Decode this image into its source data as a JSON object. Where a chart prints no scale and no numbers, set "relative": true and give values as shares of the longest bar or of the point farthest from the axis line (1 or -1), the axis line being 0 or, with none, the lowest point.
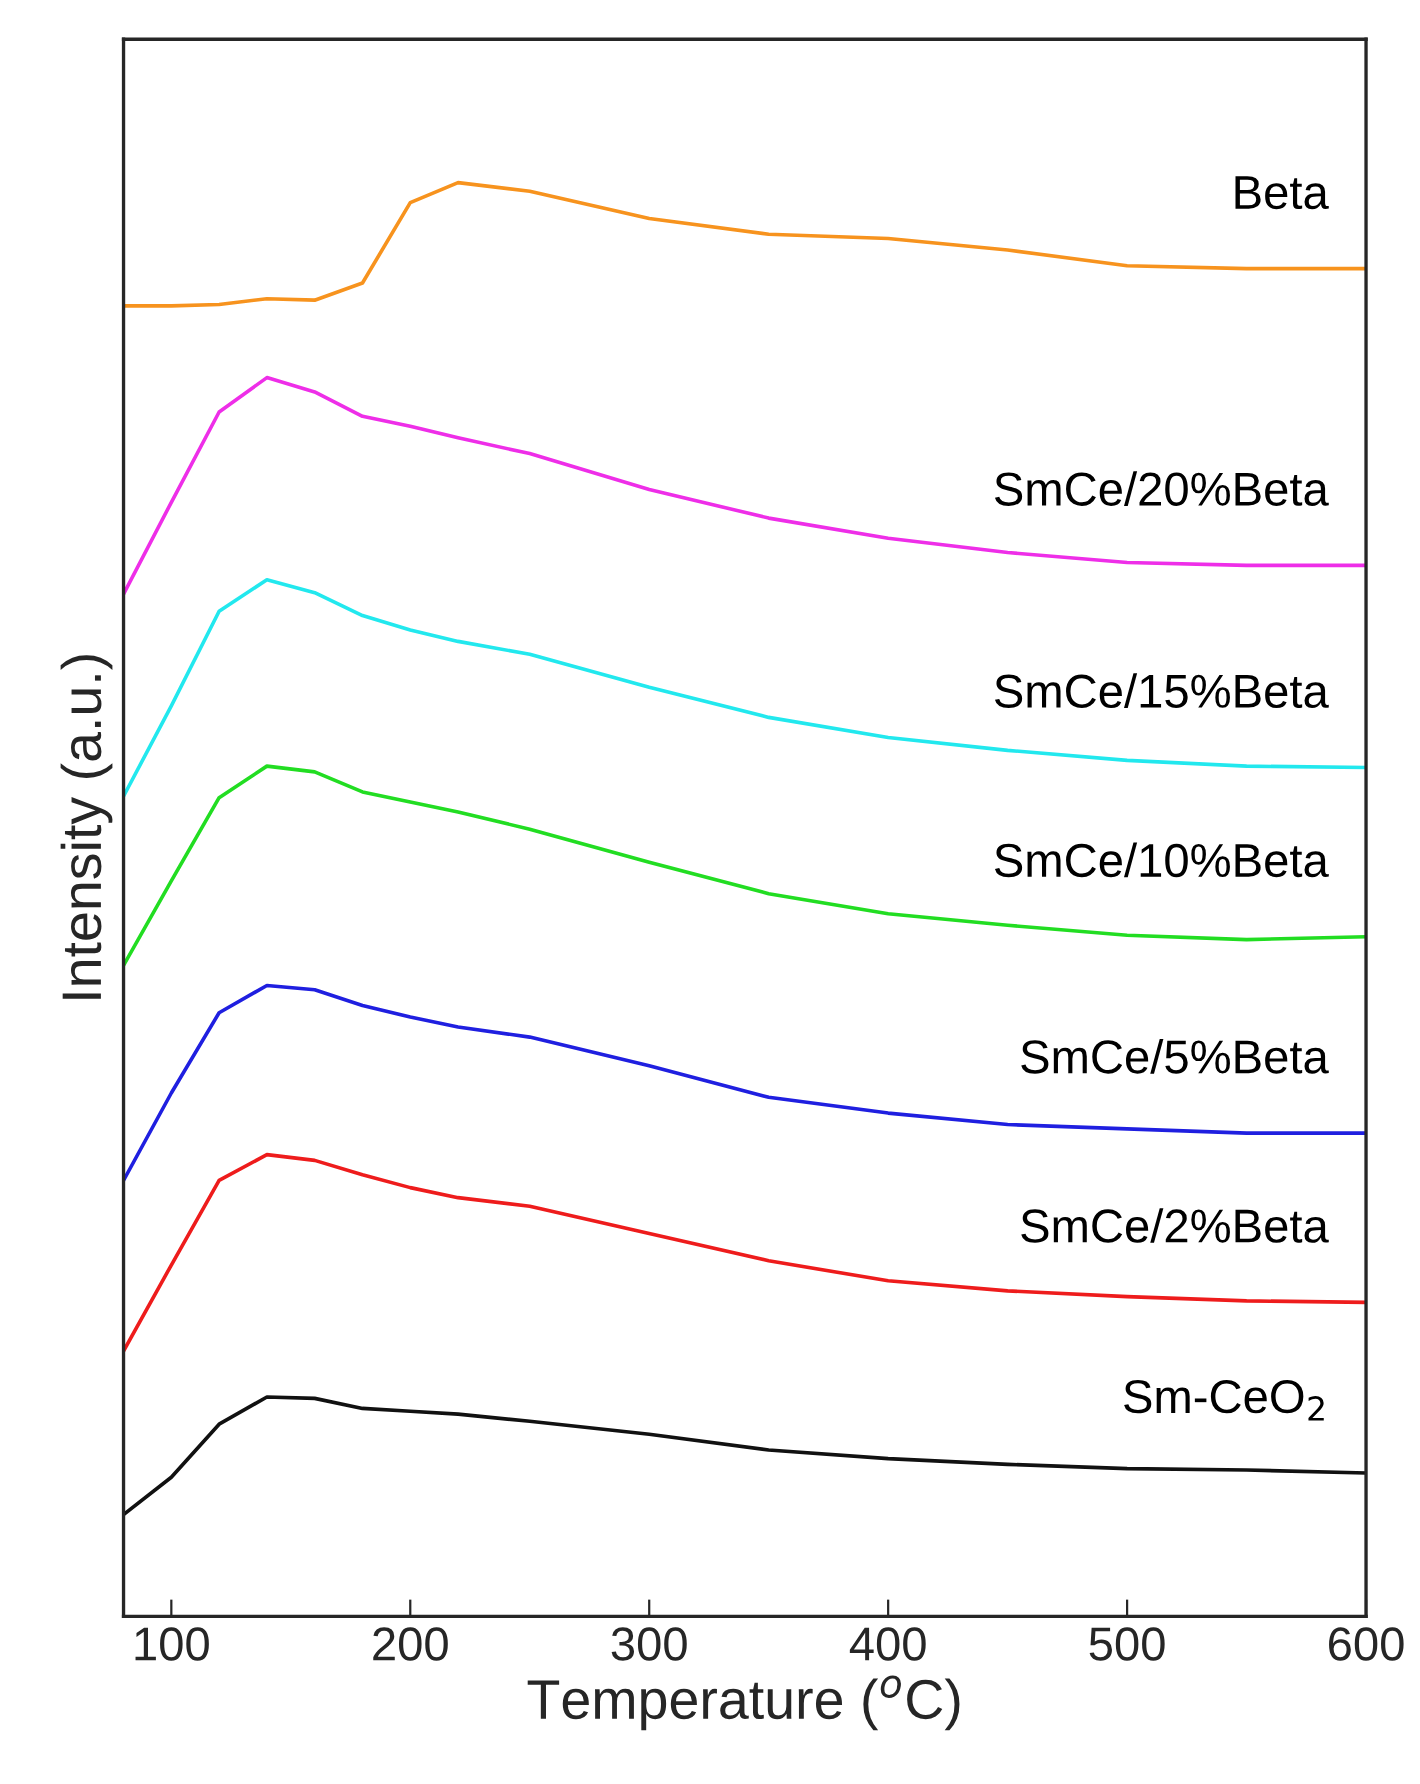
{
  "chart_data": {
    "type": "line",
    "relative": true,
    "xlabel": "Temperature ($^{o}$C)",
    "ylabel": "Intensity (a.u.)",
    "x": [
      80,
      100,
      120,
      140,
      160,
      180,
      200,
      220,
      250,
      300,
      350,
      400,
      450,
      500,
      550,
      600
    ],
    "xlim": [
      80,
      600
    ],
    "xticks": [
      100,
      200,
      300,
      400,
      500,
      600
    ],
    "grid": false,
    "legend": false,
    "tick_labels": "x",
    "series": [
      {
        "name": "Beta",
        "color": "#f7931e",
        "values": [
          0.914,
          0.914,
          0.915,
          0.919,
          0.918,
          0.93,
          0.986,
          1.0,
          0.994,
          0.975,
          0.964,
          0.961,
          0.953,
          0.942,
          0.94,
          0.94
        ]
      },
      {
        "name": "SmCe/20%Beta",
        "color": "#ee2ee8",
        "values": [
          0.713,
          0.777,
          0.84,
          0.864,
          0.854,
          0.837,
          0.83,
          0.822,
          0.811,
          0.786,
          0.766,
          0.752,
          0.742,
          0.735,
          0.733,
          0.733
        ]
      },
      {
        "name": "SmCe/15%Beta",
        "color": "#22e8ee",
        "values": [
          0.572,
          0.635,
          0.701,
          0.723,
          0.714,
          0.698,
          0.688,
          0.68,
          0.671,
          0.648,
          0.627,
          0.613,
          0.604,
          0.597,
          0.593,
          0.592
        ]
      },
      {
        "name": "SmCe/10%Beta",
        "color": "#22dd22",
        "values": [
          0.454,
          0.513,
          0.571,
          0.593,
          0.589,
          0.575,
          0.568,
          0.561,
          0.549,
          0.526,
          0.504,
          0.49,
          0.482,
          0.475,
          0.472,
          0.474
        ]
      },
      {
        "name": "SmCe/5%Beta",
        "color": "#1f1fe0",
        "values": [
          0.304,
          0.365,
          0.421,
          0.44,
          0.437,
          0.426,
          0.418,
          0.411,
          0.404,
          0.384,
          0.362,
          0.351,
          0.343,
          0.34,
          0.337,
          0.337
        ]
      },
      {
        "name": "SmCe/2%Beta",
        "color": "#ee1c1c",
        "values": [
          0.185,
          0.245,
          0.304,
          0.322,
          0.318,
          0.308,
          0.299,
          0.292,
          0.286,
          0.267,
          0.248,
          0.234,
          0.227,
          0.223,
          0.22,
          0.219
        ]
      },
      {
        "name": "Sm-CeO$_{2}$",
        "color": "#111111",
        "values": [
          0.071,
          0.097,
          0.134,
          0.153,
          0.152,
          0.145,
          0.143,
          0.141,
          0.136,
          0.127,
          0.116,
          0.11,
          0.106,
          0.103,
          0.102,
          0.1
        ]
      }
    ]
  }
}
